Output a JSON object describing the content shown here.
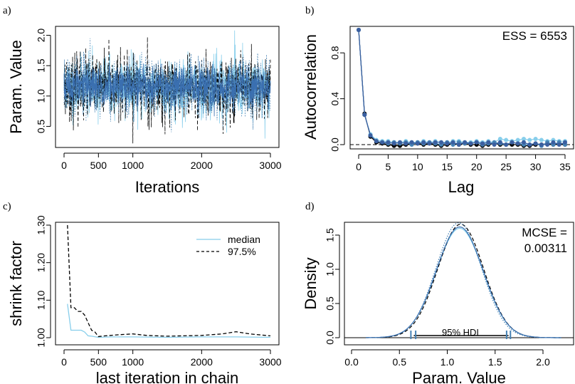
{
  "chart_data": [
    {
      "panel": "a)",
      "type": "line",
      "xlabel": "Iterations",
      "ylabel": "Param. Value",
      "xlim": [
        0,
        3000
      ],
      "ylim": [
        0.2,
        2.1
      ],
      "x_ticks": [
        0,
        500,
        1000,
        2000,
        3000
      ],
      "y_ticks": [
        0.5,
        1.0,
        1.5,
        2.0
      ],
      "series": [
        {
          "color": "#87ceeb",
          "style": "solid",
          "mean": 1.15,
          "sd": 0.25,
          "seed": 11,
          "extremes": [
            [
              2480,
              2.1
            ],
            [
              2920,
              0.3
            ]
          ]
        },
        {
          "color": "#000000",
          "style": "dashed",
          "mean": 1.14,
          "sd": 0.26,
          "seed": 23,
          "extremes": [
            [
              1000,
              0.2
            ],
            [
              1210,
              1.97
            ]
          ]
        },
        {
          "color": "#4682b4",
          "style": "dotted",
          "mean": 1.15,
          "sd": 0.24,
          "seed": 37,
          "extremes": [
            [
              380,
              1.95
            ]
          ]
        },
        {
          "color": "#3a6fb0",
          "style": "solid",
          "mean": 1.15,
          "sd": 0.16,
          "seed": 51,
          "extremes": []
        }
      ]
    },
    {
      "panel": "b)",
      "type": "line",
      "xlabel": "Lag",
      "ylabel": "Autocorrelation",
      "annotation": "ESS = 6553",
      "xlim": [
        -1,
        35
      ],
      "ylim": [
        -0.02,
        1.02
      ],
      "x_ticks": [
        0,
        5,
        10,
        15,
        20,
        25,
        30,
        35
      ],
      "y_ticks": [
        0.0,
        0.4,
        0.8
      ],
      "reference_line": 0,
      "lags": [
        0,
        1,
        2,
        3,
        4,
        5,
        6,
        7,
        8,
        9,
        10,
        11,
        12,
        13,
        14,
        15,
        16,
        17,
        18,
        19,
        20,
        21,
        22,
        23,
        24,
        25,
        26,
        27,
        28,
        29,
        30,
        31,
        32,
        33,
        34,
        35
      ],
      "series": [
        {
          "color": "#000000",
          "values": [
            1.0,
            0.27,
            0.07,
            0.02,
            0.01,
            0.0,
            -0.01,
            -0.01,
            0.0,
            0.01,
            0.01,
            0.0,
            0.01,
            0.0,
            -0.01,
            0.0,
            0.01,
            0.0,
            0.01,
            0.0,
            0.0,
            -0.01,
            0.0,
            0.01,
            0.0,
            0.0,
            0.0,
            0.0,
            -0.01,
            -0.01,
            0.0,
            0.0,
            0.01,
            0.0,
            0.01,
            0.0
          ]
        },
        {
          "color": "#87ceeb",
          "values": [
            1.0,
            0.26,
            0.09,
            0.04,
            0.03,
            0.03,
            0.02,
            0.02,
            0.03,
            0.02,
            0.02,
            0.03,
            0.02,
            0.03,
            0.02,
            0.02,
            0.03,
            0.03,
            0.02,
            0.02,
            0.03,
            0.02,
            0.03,
            0.02,
            0.05,
            0.04,
            0.03,
            0.04,
            0.05,
            0.04,
            0.05,
            0.04,
            0.03,
            0.04,
            0.03,
            0.03
          ]
        },
        {
          "color": "#4682b4",
          "values": [
            1.0,
            0.26,
            0.08,
            0.03,
            0.02,
            0.01,
            0.02,
            0.01,
            0.02,
            0.0,
            0.02,
            0.01,
            0.02,
            0.01,
            0.0,
            0.02,
            0.0,
            0.02,
            0.01,
            0.01,
            0.02,
            0.0,
            0.01,
            0.02,
            0.01,
            0.0,
            0.02,
            0.01,
            0.0,
            0.0,
            0.01,
            -0.01,
            0.02,
            0.0,
            0.02,
            0.0
          ]
        },
        {
          "color": "#3a5fa0",
          "values": [
            1.0,
            0.26,
            0.08,
            0.03,
            0.02,
            0.02,
            0.01,
            0.02,
            0.01,
            0.02,
            0.01,
            0.02,
            0.01,
            0.02,
            0.02,
            0.01,
            0.02,
            0.0,
            0.02,
            0.01,
            0.02,
            0.01,
            0.02,
            0.0,
            0.02,
            0.0,
            0.02,
            0.01,
            0.02,
            0.0,
            0.01,
            0.0,
            0.0,
            0.02,
            0.0,
            0.02
          ]
        }
      ]
    },
    {
      "panel": "c)",
      "type": "line",
      "xlabel": "last iteration in chain",
      "ylabel": "shrink factor",
      "xlim": [
        0,
        3000
      ],
      "ylim": [
        1.0,
        1.3
      ],
      "x_ticks": [
        0,
        500,
        1000,
        2000,
        3000
      ],
      "y_ticks": [
        1.0,
        1.1,
        1.2,
        1.3
      ],
      "legend": [
        "median",
        "97.5%"
      ],
      "legend_position": "top-right",
      "series": [
        {
          "name": "median",
          "color": "#87ceeb",
          "style": "solid",
          "x": [
            50,
            100,
            150,
            200,
            250,
            300,
            350,
            400,
            500,
            700,
            1000,
            1500,
            2000,
            2500,
            3000
          ],
          "y": [
            1.09,
            1.02,
            1.02,
            1.02,
            1.02,
            1.015,
            1.005,
            1.004,
            1.001,
            1.002,
            1.002,
            1.001,
            1.002,
            1.002,
            1.001
          ]
        },
        {
          "name": "97.5%",
          "color": "#000000",
          "style": "dashed",
          "x": [
            50,
            100,
            150,
            200,
            250,
            300,
            350,
            400,
            450,
            500,
            600,
            800,
            1000,
            1200,
            1500,
            2000,
            2300,
            2500,
            2700,
            3000
          ],
          "y": [
            1.3,
            1.08,
            1.08,
            1.07,
            1.07,
            1.06,
            1.04,
            1.02,
            1.015,
            1.003,
            1.005,
            1.008,
            1.01,
            1.006,
            1.004,
            1.006,
            1.01,
            1.016,
            1.01,
            1.005
          ]
        }
      ]
    },
    {
      "panel": "d)",
      "type": "line",
      "xlabel": "Param. Value",
      "ylabel": "Density",
      "annotation_line1": "MCSE =",
      "annotation_line2": "0.00311",
      "hdi_label": "95% HDI",
      "xlim": [
        -0.05,
        2.35
      ],
      "ylim": [
        0,
        1.7
      ],
      "x_ticks": [
        0.0,
        0.5,
        1.0,
        1.5,
        2.0
      ],
      "y_ticks": [
        0.0,
        0.5,
        1.0,
        1.5
      ],
      "hdi": [
        0.65,
        1.64
      ],
      "hdi_marks": [
        0.62,
        0.67,
        1.62,
        1.66
      ],
      "series": [
        {
          "color": "#87ceeb",
          "style": "solid",
          "mean": 1.13,
          "sd": 0.245,
          "peak": 1.6
        },
        {
          "color": "#000000",
          "style": "dashed",
          "mean": 1.14,
          "sd": 0.24,
          "peak": 1.66
        },
        {
          "color": "#4682b4",
          "style": "dotted",
          "mean": 1.12,
          "sd": 0.238,
          "peak": 1.68
        },
        {
          "color": "#3a6fb0",
          "style": "solid",
          "mean": 1.13,
          "sd": 0.245,
          "peak": 1.62
        }
      ]
    }
  ]
}
